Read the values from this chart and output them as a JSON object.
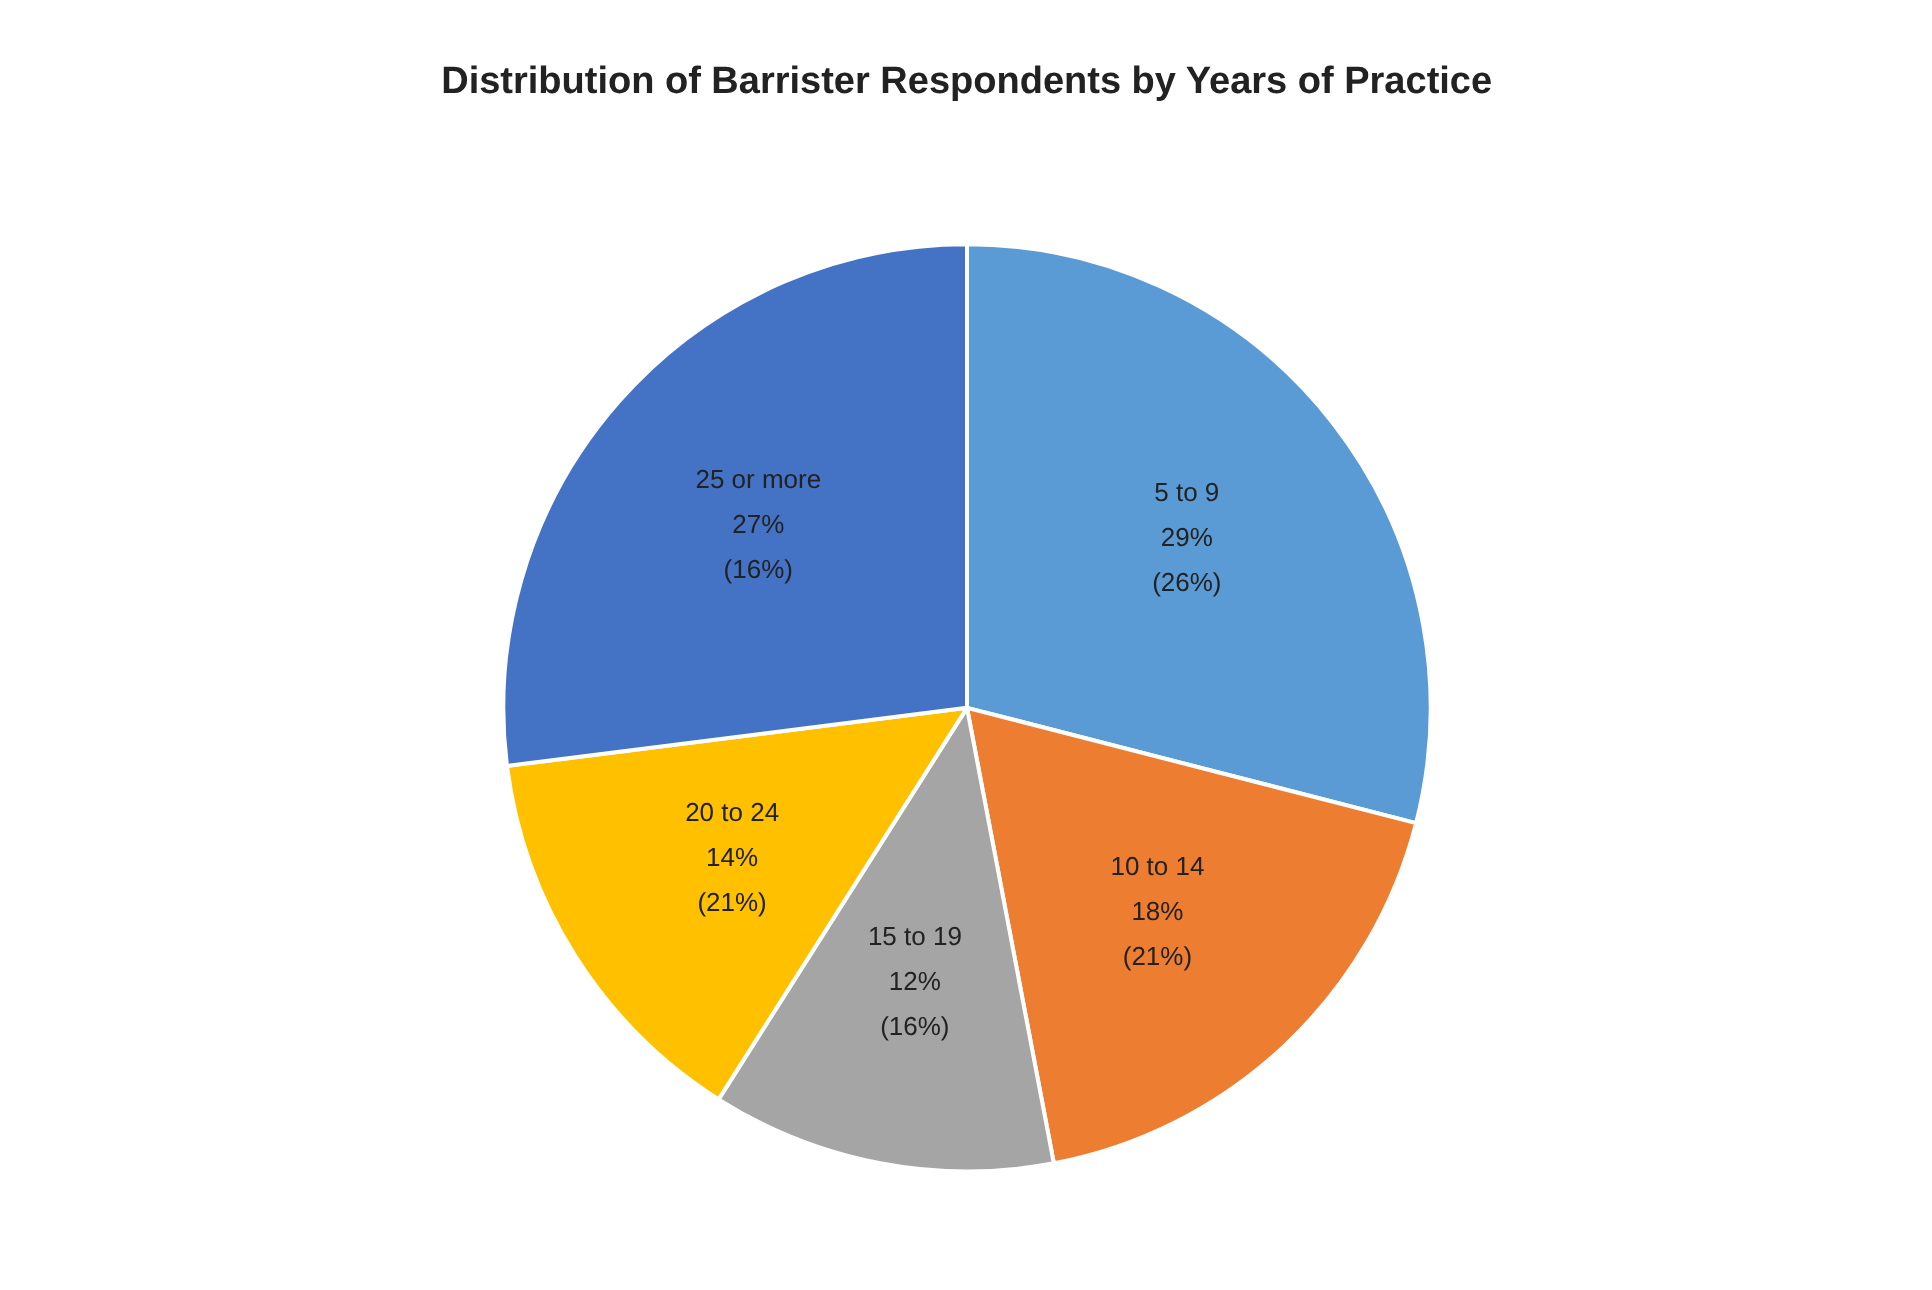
{
  "chart_data": {
    "type": "pie",
    "title": "Distribution of Barrister Respondents by Years of Practice",
    "categories": [
      "5 to 9",
      "10 to 14",
      "15 to 19",
      "20 to 24",
      "25 or more"
    ],
    "values": [
      29,
      18,
      12,
      14,
      27
    ],
    "colors": [
      "#5b9bd5",
      "#ed7d31",
      "#a5a5a5",
      "#ffc000",
      "#4472c4"
    ],
    "value_labels": [
      "29%\n(26%)",
      "18%\n(21%)",
      "12%\n(16%)",
      "14%\n(21%)",
      "27%\n(16%)"
    ],
    "legend": false
  }
}
